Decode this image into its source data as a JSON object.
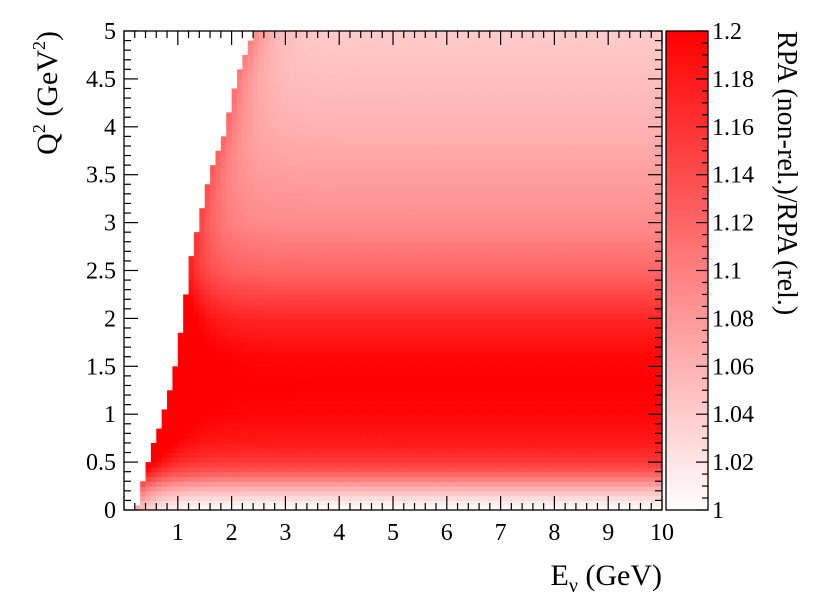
{
  "chart_data": {
    "type": "heatmap",
    "title": "",
    "xlabel": "Eν (GeV)",
    "xlabel_parts": {
      "main": "E",
      "sub": "ν",
      "unit": " (GeV)"
    },
    "ylabel": "Q² (GeV²)",
    "ylabel_parts": {
      "main": "Q",
      "sup": "2",
      "unit_open": " (GeV",
      "unit_sup": "2",
      "unit_close": ")"
    },
    "zlabel": "RPA (non-rel.)/RPA (rel.)",
    "xlim": [
      0,
      10
    ],
    "ylim": [
      0,
      5
    ],
    "zlim": [
      1.0,
      1.2
    ],
    "x_ticks": [
      "1",
      "2",
      "3",
      "4",
      "5",
      "6",
      "7",
      "8",
      "9",
      "10"
    ],
    "y_ticks": [
      "0",
      "0.5",
      "1",
      "1.5",
      "2",
      "2.5",
      "3",
      "3.5",
      "4",
      "4.5",
      "5"
    ],
    "z_ticks": [
      "1",
      "1.02",
      "1.04",
      "1.06",
      "1.08",
      "1.1",
      "1.12",
      "1.14",
      "1.16",
      "1.18",
      "1.2"
    ],
    "color_low": "#ffffff",
    "color_high": "#ff0000",
    "colormap": "white-to-red",
    "kinematic_boundary": [
      [
        0.25,
        0.05
      ],
      [
        0.3,
        0.2
      ],
      [
        0.4,
        0.4
      ],
      [
        0.5,
        0.55
      ],
      [
        0.55,
        0.7
      ],
      [
        0.62,
        0.8
      ],
      [
        0.7,
        0.95
      ],
      [
        0.8,
        1.1
      ],
      [
        0.9,
        1.4
      ],
      [
        1.0,
        1.65
      ],
      [
        1.05,
        1.85
      ],
      [
        1.1,
        2.0
      ],
      [
        1.2,
        2.5
      ],
      [
        1.4,
        3.0
      ],
      [
        1.6,
        3.5
      ],
      [
        1.9,
        4.0
      ],
      [
        2.1,
        4.5
      ],
      [
        2.4,
        5.0
      ]
    ],
    "q2_profile": [
      {
        "q2": 0.0,
        "ratio": 1.0
      },
      {
        "q2": 0.1,
        "ratio": 1.02
      },
      {
        "q2": 0.2,
        "ratio": 1.05
      },
      {
        "q2": 0.3,
        "ratio": 1.09
      },
      {
        "q2": 0.4,
        "ratio": 1.13
      },
      {
        "q2": 0.5,
        "ratio": 1.155
      },
      {
        "q2": 0.7,
        "ratio": 1.18
      },
      {
        "q2": 1.0,
        "ratio": 1.195
      },
      {
        "q2": 1.3,
        "ratio": 1.2
      },
      {
        "q2": 1.6,
        "ratio": 1.195
      },
      {
        "q2": 2.0,
        "ratio": 1.17
      },
      {
        "q2": 2.5,
        "ratio": 1.12
      },
      {
        "q2": 3.0,
        "ratio": 1.09
      },
      {
        "q2": 3.5,
        "ratio": 1.075
      },
      {
        "q2": 4.0,
        "ratio": 1.06
      },
      {
        "q2": 4.5,
        "ratio": 1.05
      },
      {
        "q2": 5.0,
        "ratio": 1.04
      }
    ],
    "edge_enhancement": 0.06
  }
}
